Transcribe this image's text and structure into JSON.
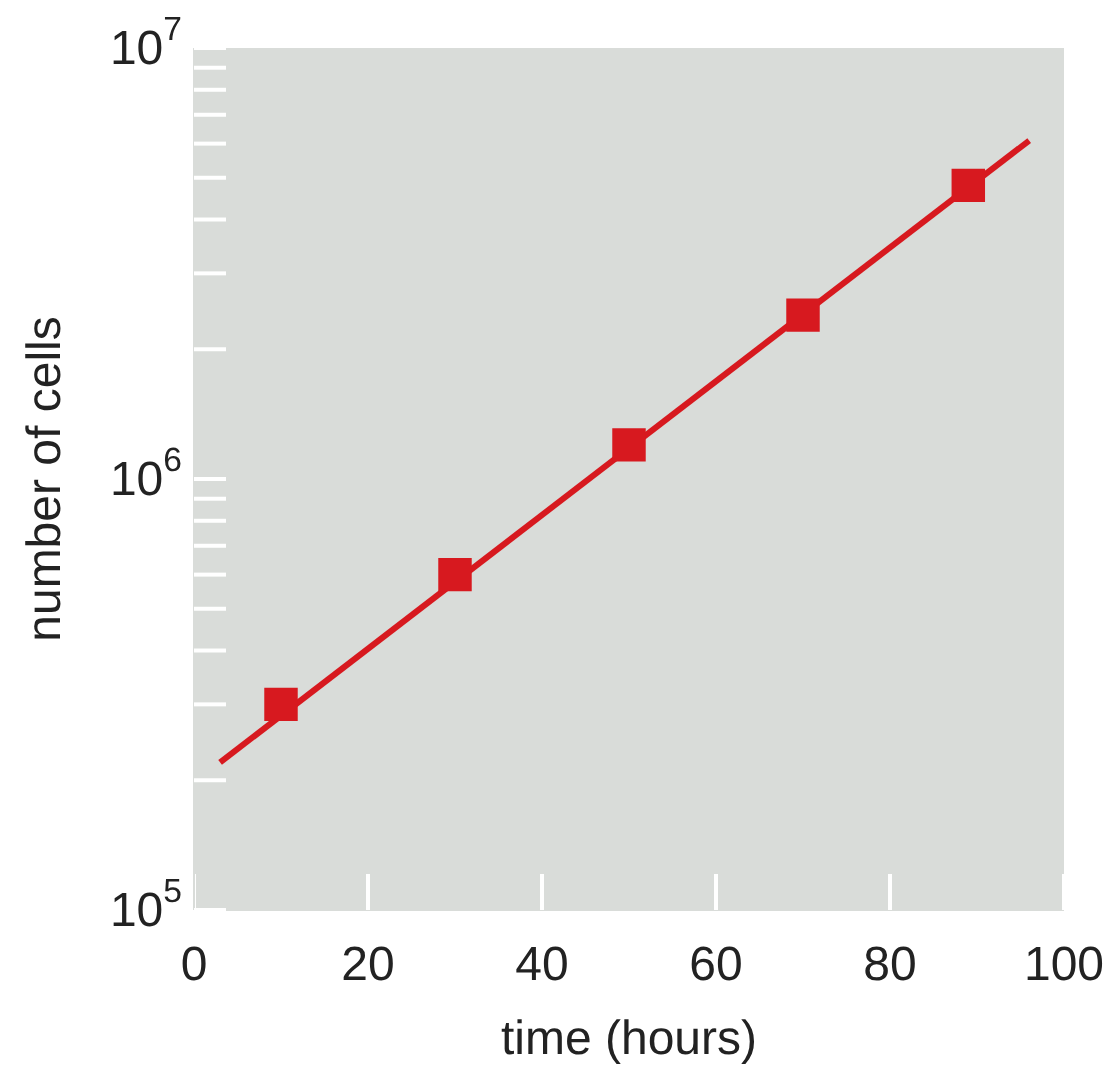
{
  "chart_data": {
    "type": "scatter",
    "xlabel": "time (hours)",
    "ylabel": "number of cells",
    "log": "y",
    "xlim": [
      0,
      100
    ],
    "xticks": [
      0,
      20,
      40,
      60,
      80,
      100
    ],
    "ylim": [
      100000,
      10000000
    ],
    "yticks": [
      {
        "value": 100000,
        "label": "10$^{5}$"
      },
      {
        "value": 200000,
        "label": null
      },
      {
        "value": 300000,
        "label": null
      },
      {
        "value": 400000,
        "label": null
      },
      {
        "value": 500000,
        "label": null
      },
      {
        "value": 600000,
        "label": null
      },
      {
        "value": 700000,
        "label": null
      },
      {
        "value": 800000,
        "label": null
      },
      {
        "value": 900000,
        "label": null
      },
      {
        "value": 1000000,
        "label": "10$^{6}$"
      },
      {
        "value": 2000000,
        "label": null
      },
      {
        "value": 3000000,
        "label": null
      },
      {
        "value": 4000000,
        "label": null
      },
      {
        "value": 5000000,
        "label": null
      },
      {
        "value": 6000000,
        "label": null
      },
      {
        "value": 7000000,
        "label": null
      },
      {
        "value": 8000000,
        "label": null
      },
      {
        "value": 9000000,
        "label": null
      },
      {
        "value": 10000000,
        "label": "10$^{7}$"
      }
    ],
    "series": [
      {
        "type": "line",
        "color": "#d7191f",
        "x": [
          3,
          96
        ],
        "values": [
          220000,
          6100000
        ]
      },
      {
        "color": "#d7191f",
        "marker": "square",
        "x": [
          10,
          30,
          50,
          70,
          89
        ],
        "values": [
          300000,
          600000,
          1200000,
          2400000,
          4800000
        ]
      }
    ]
  }
}
